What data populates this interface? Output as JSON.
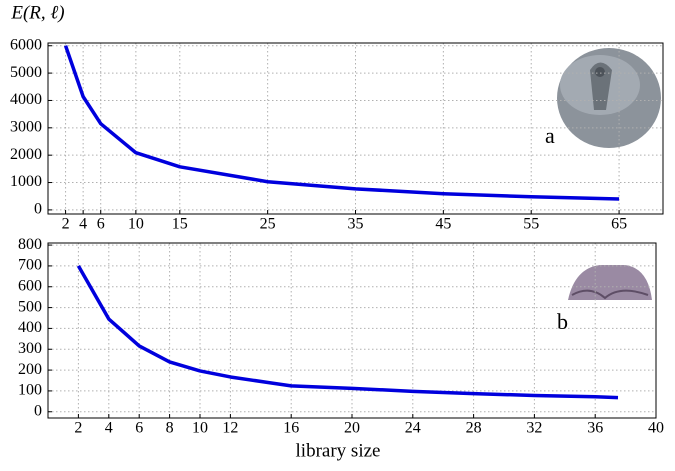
{
  "chart_data": [
    {
      "type": "line",
      "ylabel": "E(R, ℓ)",
      "annotation": "a",
      "x": [
        2,
        4,
        6,
        10,
        15,
        25,
        35,
        45,
        55,
        65
      ],
      "series": [
        {
          "color": "#0000dd",
          "values": [
            6000,
            4140,
            3150,
            2090,
            1575,
            1030,
            770,
            590,
            480,
            400
          ]
        }
      ],
      "xlim": [
        0,
        70
      ],
      "xticks": [
        2,
        4,
        6,
        10,
        15,
        25,
        35,
        45,
        55,
        65
      ],
      "ylim": [
        -150,
        6100
      ],
      "yticks": [
        0,
        1000,
        2000,
        3000,
        4000,
        5000,
        6000
      ],
      "grid": true
    },
    {
      "type": "line",
      "xlabel": "library size",
      "annotation": "b",
      "x": [
        2,
        4,
        6,
        8,
        10,
        12,
        16,
        20,
        24,
        28,
        32,
        36,
        37.5
      ],
      "series": [
        {
          "color": "#0000dd",
          "values": [
            700,
            445,
            316,
            239,
            196,
            167,
            124,
            112,
            98,
            87,
            78,
            72,
            68
          ]
        }
      ],
      "xlim": [
        0,
        40
      ],
      "xticks": [
        2,
        4,
        6,
        8,
        10,
        12,
        16,
        20,
        24,
        28,
        32,
        36,
        40
      ],
      "ylim": [
        -30,
        810
      ],
      "yticks": [
        0,
        100,
        200,
        300,
        400,
        500,
        600,
        700,
        800
      ],
      "grid": true
    }
  ]
}
